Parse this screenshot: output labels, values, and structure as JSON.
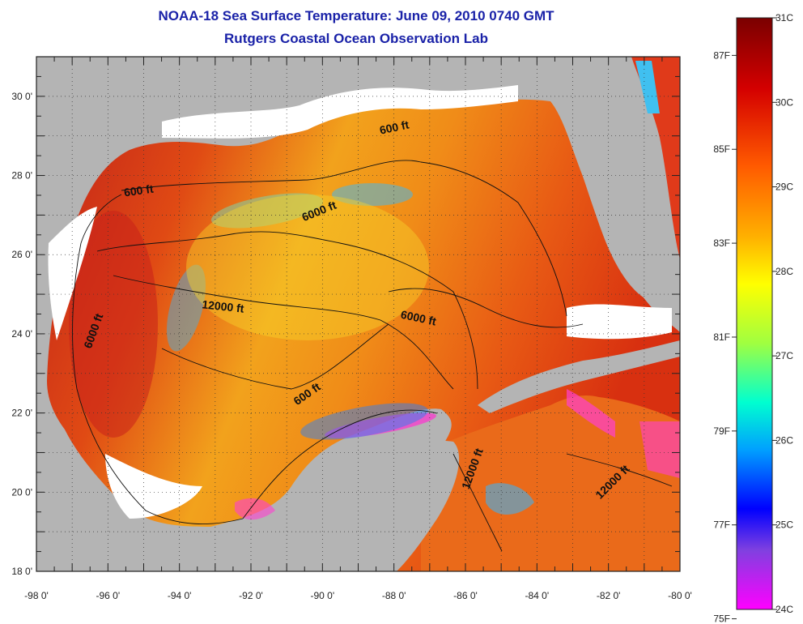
{
  "title": {
    "line1": "NOAA-18 Sea Surface Temperature:  June 09, 2010 0740 GMT",
    "line2": "Rutgers Coastal Ocean Observation Lab"
  },
  "axes": {
    "x_ticks": [
      "-98 0'",
      "-96 0'",
      "-94 0'",
      "-92 0'",
      "-90 0'",
      "-88 0'",
      "-86 0'",
      "-84 0'",
      "-82 0'",
      "-80 0'"
    ],
    "y_ticks": [
      "30 0'",
      "28 0'",
      "26 0'",
      "24 0'",
      "22 0'",
      "20 0'",
      "18 0'"
    ]
  },
  "colorbar": {
    "celsius": [
      "31C",
      "30C",
      "29C",
      "28C",
      "27C",
      "26C",
      "25C",
      "24C"
    ],
    "fahrenheit": [
      "87F",
      "85F",
      "83F",
      "81F",
      "79F",
      "77F",
      "75F"
    ]
  },
  "contour_labels": [
    "600 ft",
    "600 ft",
    "6000 ft",
    "12000 ft",
    "6000 ft",
    "6000 ft",
    "600 ft",
    "12000 ft",
    "12000 ft"
  ],
  "colors": {
    "land": "#b4b4b4",
    "title": "#1a22a8",
    "cloud": "#ffffff"
  }
}
